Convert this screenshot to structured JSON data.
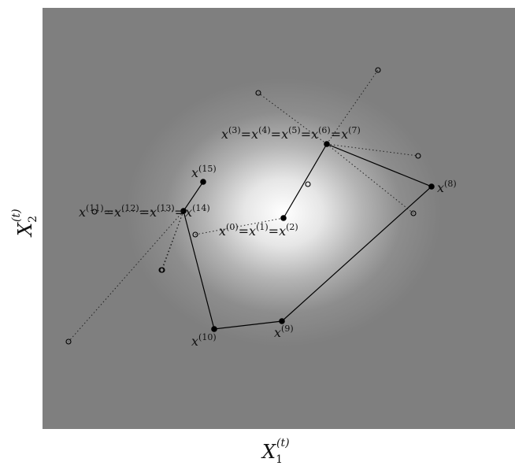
{
  "axes": {
    "xlabel": "X",
    "xlabel_sub": "1",
    "xlabel_sup": "(t)",
    "ylabel": "X",
    "ylabel_sub": "2",
    "ylabel_sup": "(t)"
  },
  "labels": {
    "l0": {
      "parts": [
        [
          "x",
          "(0)"
        ],
        [
          "=x",
          "(1)"
        ],
        [
          "=x",
          "(2)"
        ]
      ]
    },
    "l3": {
      "parts": [
        [
          "x",
          "(3)"
        ],
        [
          "=x",
          "(4)"
        ],
        [
          "=x",
          "(5)"
        ],
        [
          "=x",
          "(6)"
        ],
        [
          "=x",
          "(7)"
        ]
      ]
    },
    "l8": {
      "parts": [
        [
          "x",
          "(8)"
        ]
      ]
    },
    "l9": {
      "parts": [
        [
          "x",
          "(9)"
        ]
      ]
    },
    "l10": {
      "parts": [
        [
          "x",
          "(10)"
        ]
      ]
    },
    "l11": {
      "parts": [
        [
          "x",
          "(11)"
        ],
        [
          "=x",
          "(12)"
        ],
        [
          "=x",
          "(13)"
        ],
        [
          "=x",
          "(14)"
        ]
      ]
    },
    "l15": {
      "parts": [
        [
          "x",
          "(15)"
        ]
      ]
    }
  },
  "colors": {
    "background": "#7f7f7f",
    "peak": "#ffffff",
    "path": "#000000"
  }
}
